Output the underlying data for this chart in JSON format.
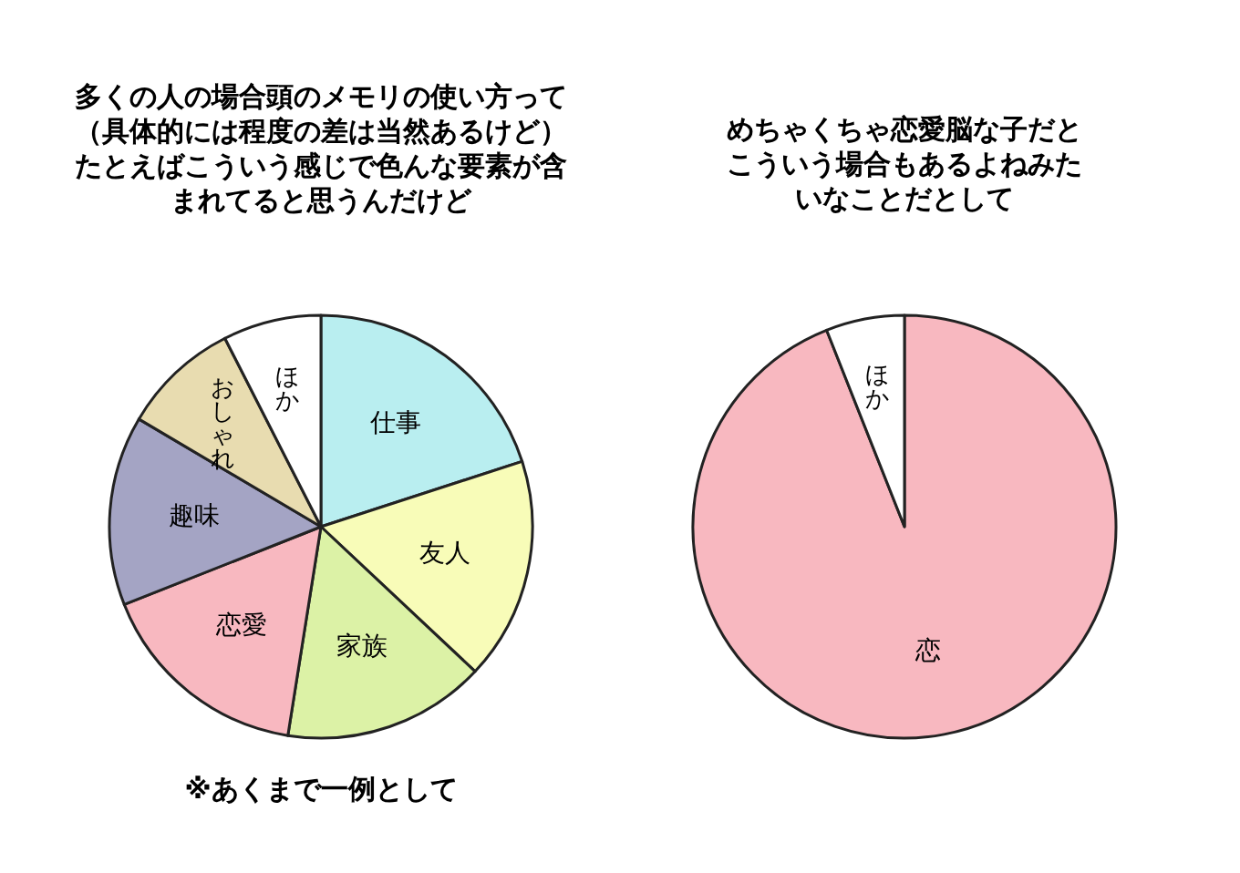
{
  "chart_data": [
    {
      "type": "pie",
      "title": "多くの人の場合頭のメモリの使い方って（具体的には程度の差は当然あるけど）たとえばこういう感じで色んな要素が含まれてると思うんだけど",
      "categories": [
        "仕事",
        "友人",
        "家族",
        "恋愛",
        "趣味",
        "おしゃれ",
        "ほか"
      ],
      "values": [
        20,
        17,
        15.5,
        16.5,
        14.5,
        9,
        7.5
      ],
      "colors": [
        "#b9eef0",
        "#f8fcb8",
        "#dcf2a6",
        "#f8b8c0",
        "#a4a4c4",
        "#e8dcb0",
        "#ffffff"
      ],
      "annotations": [
        "※あくまで一例として"
      ]
    },
    {
      "type": "pie",
      "title": "めちゃくちゃ恋愛脳な子だとこういう場合もあるよねみたいなことだとして",
      "categories": [
        "恋",
        "ほか"
      ],
      "values": [
        94,
        6
      ],
      "colors": [
        "#f8b8c0",
        "#ffffff"
      ]
    }
  ]
}
